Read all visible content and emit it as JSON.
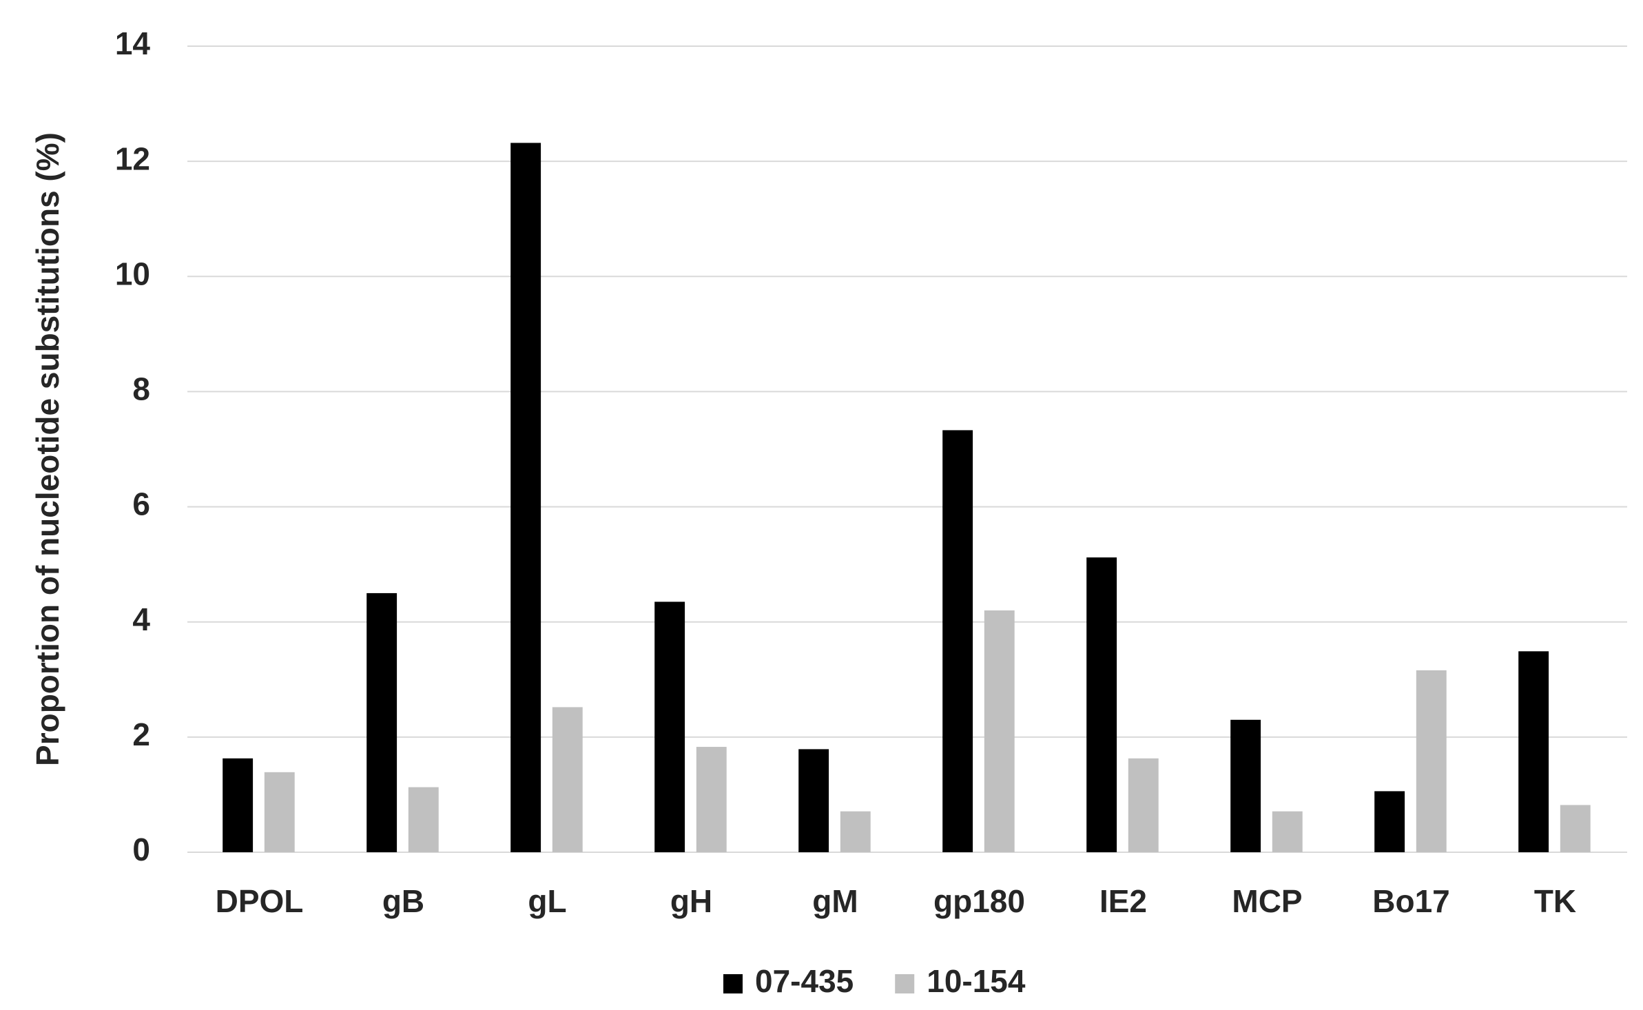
{
  "chart_data": {
    "type": "bar",
    "y_label": "Proportion of nucleotide substitutions (%)",
    "categories": [
      "DPOL",
      "gB",
      "gL",
      "gH",
      "gM",
      "gp180",
      "IE2",
      "MCP",
      "Bo17",
      "TK"
    ],
    "series": [
      {
        "name": "07-435",
        "color": "#000000",
        "values": [
          1.63,
          4.5,
          12.32,
          4.35,
          1.79,
          7.33,
          5.12,
          2.3,
          1.06,
          3.49
        ]
      },
      {
        "name": "10-154",
        "color": "#c0c0c0",
        "values": [
          1.39,
          1.13,
          2.52,
          1.83,
          0.71,
          4.2,
          1.63,
          0.71,
          3.16,
          0.82
        ]
      }
    ],
    "ylim": [
      0,
      14
    ],
    "yticks": [
      0,
      2,
      4,
      6,
      8,
      10,
      12,
      14
    ],
    "grid": true,
    "legend": "bottom"
  }
}
